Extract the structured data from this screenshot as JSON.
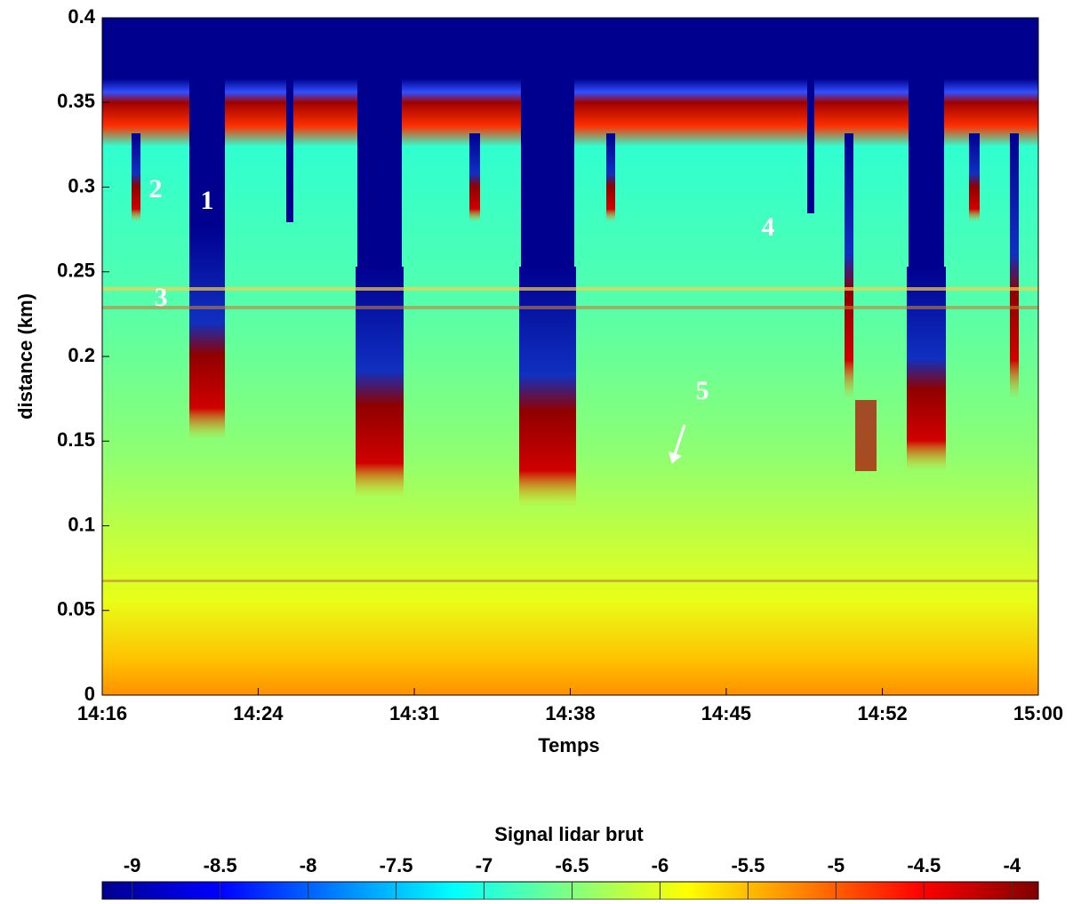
{
  "chart_data": {
    "type": "heatmap",
    "xlabel": "Temps",
    "ylabel": "distance (km)",
    "xlim": [
      0,
      44
    ],
    "xticks": [
      {
        "value": 0,
        "label": "14:16"
      },
      {
        "value": 7.33,
        "label": "14:24"
      },
      {
        "value": 14.67,
        "label": "14:31"
      },
      {
        "value": 22,
        "label": "14:38"
      },
      {
        "value": 29.33,
        "label": "14:45"
      },
      {
        "value": 36.67,
        "label": "14:52"
      },
      {
        "value": 44,
        "label": "15:00"
      }
    ],
    "ylim": [
      0,
      0.4
    ],
    "yticks": [
      0,
      0.05,
      0.1,
      0.15,
      0.2,
      0.25,
      0.3,
      0.35,
      0.4
    ],
    "colormap": "jet",
    "colorbar": {
      "label": "Signal lidar brut",
      "lim": [
        -9.17,
        -3.85
      ],
      "ticks": [
        -9,
        -8.5,
        -8,
        -7.5,
        -7,
        -6.5,
        -6,
        -5.5,
        -5,
        -4.5,
        -4
      ]
    },
    "annotations": [
      "1",
      "2",
      "3",
      "4",
      "5"
    ]
  }
}
